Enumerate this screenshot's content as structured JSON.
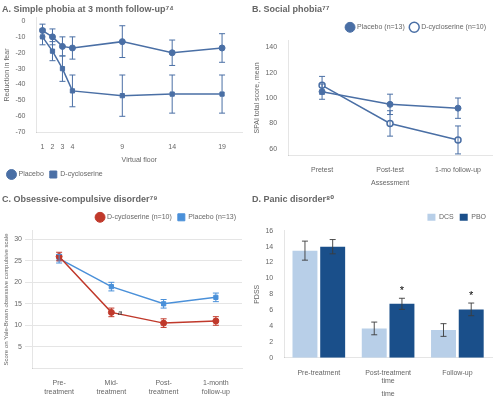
{
  "chart_data": [
    {
      "type": "line",
      "title": "A. Simple phobia at 3 month follow-up⁷⁴",
      "xlabel": "Virtual floor",
      "ylabel": "Reduction in fear",
      "x": [
        1,
        2,
        3,
        4,
        9,
        14,
        19
      ],
      "series": [
        {
          "name": "Placebo",
          "color": "#4a6fa5",
          "marker": "circle",
          "values": [
            -6,
            -10,
            -16,
            -17,
            -13,
            -20,
            -17
          ],
          "errors": [
            4,
            5,
            6,
            7,
            10,
            8,
            9
          ]
        },
        {
          "name": "D-cycloserine",
          "color": "#4a6fa5",
          "marker": "square",
          "values": [
            -10,
            -19,
            -30,
            -44,
            -47,
            -46,
            -46
          ],
          "errors": [
            5,
            6,
            8,
            10,
            13,
            12,
            12
          ]
        }
      ],
      "xlim": [
        0.4,
        21
      ],
      "xticks": [
        1,
        2,
        3,
        4,
        9,
        14,
        19
      ],
      "ylim": [
        -70,
        2
      ],
      "yticks": [
        0,
        -10,
        -20,
        -30,
        -40,
        -50,
        -60,
        -70
      ],
      "grid": false,
      "legend": "lower left"
    },
    {
      "type": "line",
      "title": "B. Social phobia⁷⁷",
      "xlabel": "Assessment",
      "ylabel": "SPAI total score, mean",
      "categories": [
        "Pretest",
        "Post-test",
        "1-mo follow-up"
      ],
      "series": [
        {
          "name": "Placebo (n=13)",
          "color": "#4a6fa5",
          "marker": "circle",
          "values": [
            105,
            95,
            92
          ],
          "errors": [
            6,
            8,
            8
          ]
        },
        {
          "name": "D-cycloserine (n=10)",
          "color": "#4a6fa5",
          "marker": "open_circle",
          "values": [
            110,
            80,
            67
          ],
          "errors": [
            7,
            10,
            11
          ]
        }
      ],
      "ylim": [
        55,
        145
      ],
      "yticks": [
        60,
        80,
        100,
        120,
        140
      ],
      "grid": false,
      "legend": "upper right"
    },
    {
      "type": "line",
      "title": "C. Obsessive-compulsive disorder⁷⁹",
      "ylabel": "Score on Yale-Brown obsessive compulsive scale",
      "categories": [
        "Pre-\ntreatment",
        "Mid-\ntreatment",
        "Post-\ntreatment",
        "1-month\nfollow-up"
      ],
      "series": [
        {
          "name": "D-cycloserine (n=10)",
          "color": "#c0392b",
          "marker": "circle",
          "values": [
            26,
            13,
            10.5,
            11
          ],
          "errors": [
            1.0,
            1.0,
            1.0,
            1.0
          ]
        },
        {
          "name": "Placebo (n=13)",
          "color": "#4a90d9",
          "marker": "square",
          "values": [
            25.5,
            19,
            15,
            16.5
          ],
          "errors": [
            1.0,
            1.0,
            1.0,
            1.0
          ]
        }
      ],
      "annotations": [
        {
          "text": "a",
          "x": 1.12,
          "y": 12.5
        }
      ],
      "ylim": [
        0,
        32
      ],
      "yticks": [
        5,
        10,
        15,
        20,
        25,
        30
      ],
      "grid": "y",
      "legend": "upper right"
    },
    {
      "type": "bar",
      "title": "D. Panic disorder⁸⁰",
      "xlabel": "time",
      "ylabel": "PDSS",
      "categories": [
        "Pre-treatment",
        "Post-treatment\ntime",
        "Follow-up"
      ],
      "series": [
        {
          "name": "DCS",
          "color": "#b8cfe8",
          "values": [
            13.5,
            3.7,
            3.5
          ],
          "errors": [
            1.2,
            0.8,
            0.8
          ]
        },
        {
          "name": "PBO",
          "color": "#1a4f8a",
          "values": [
            14.0,
            6.8,
            6.1
          ],
          "errors": [
            0.9,
            0.7,
            0.8
          ]
        }
      ],
      "annotations": [
        {
          "text": "*",
          "x": "Post-treatment\ntime",
          "series": "PBO"
        },
        {
          "text": "*",
          "x": "Follow-up",
          "series": "PBO"
        }
      ],
      "ylim": [
        0,
        16
      ],
      "yticks": [
        0,
        2,
        4,
        6,
        8,
        10,
        12,
        14,
        16
      ],
      "grid": false,
      "legend": "upper right"
    }
  ]
}
